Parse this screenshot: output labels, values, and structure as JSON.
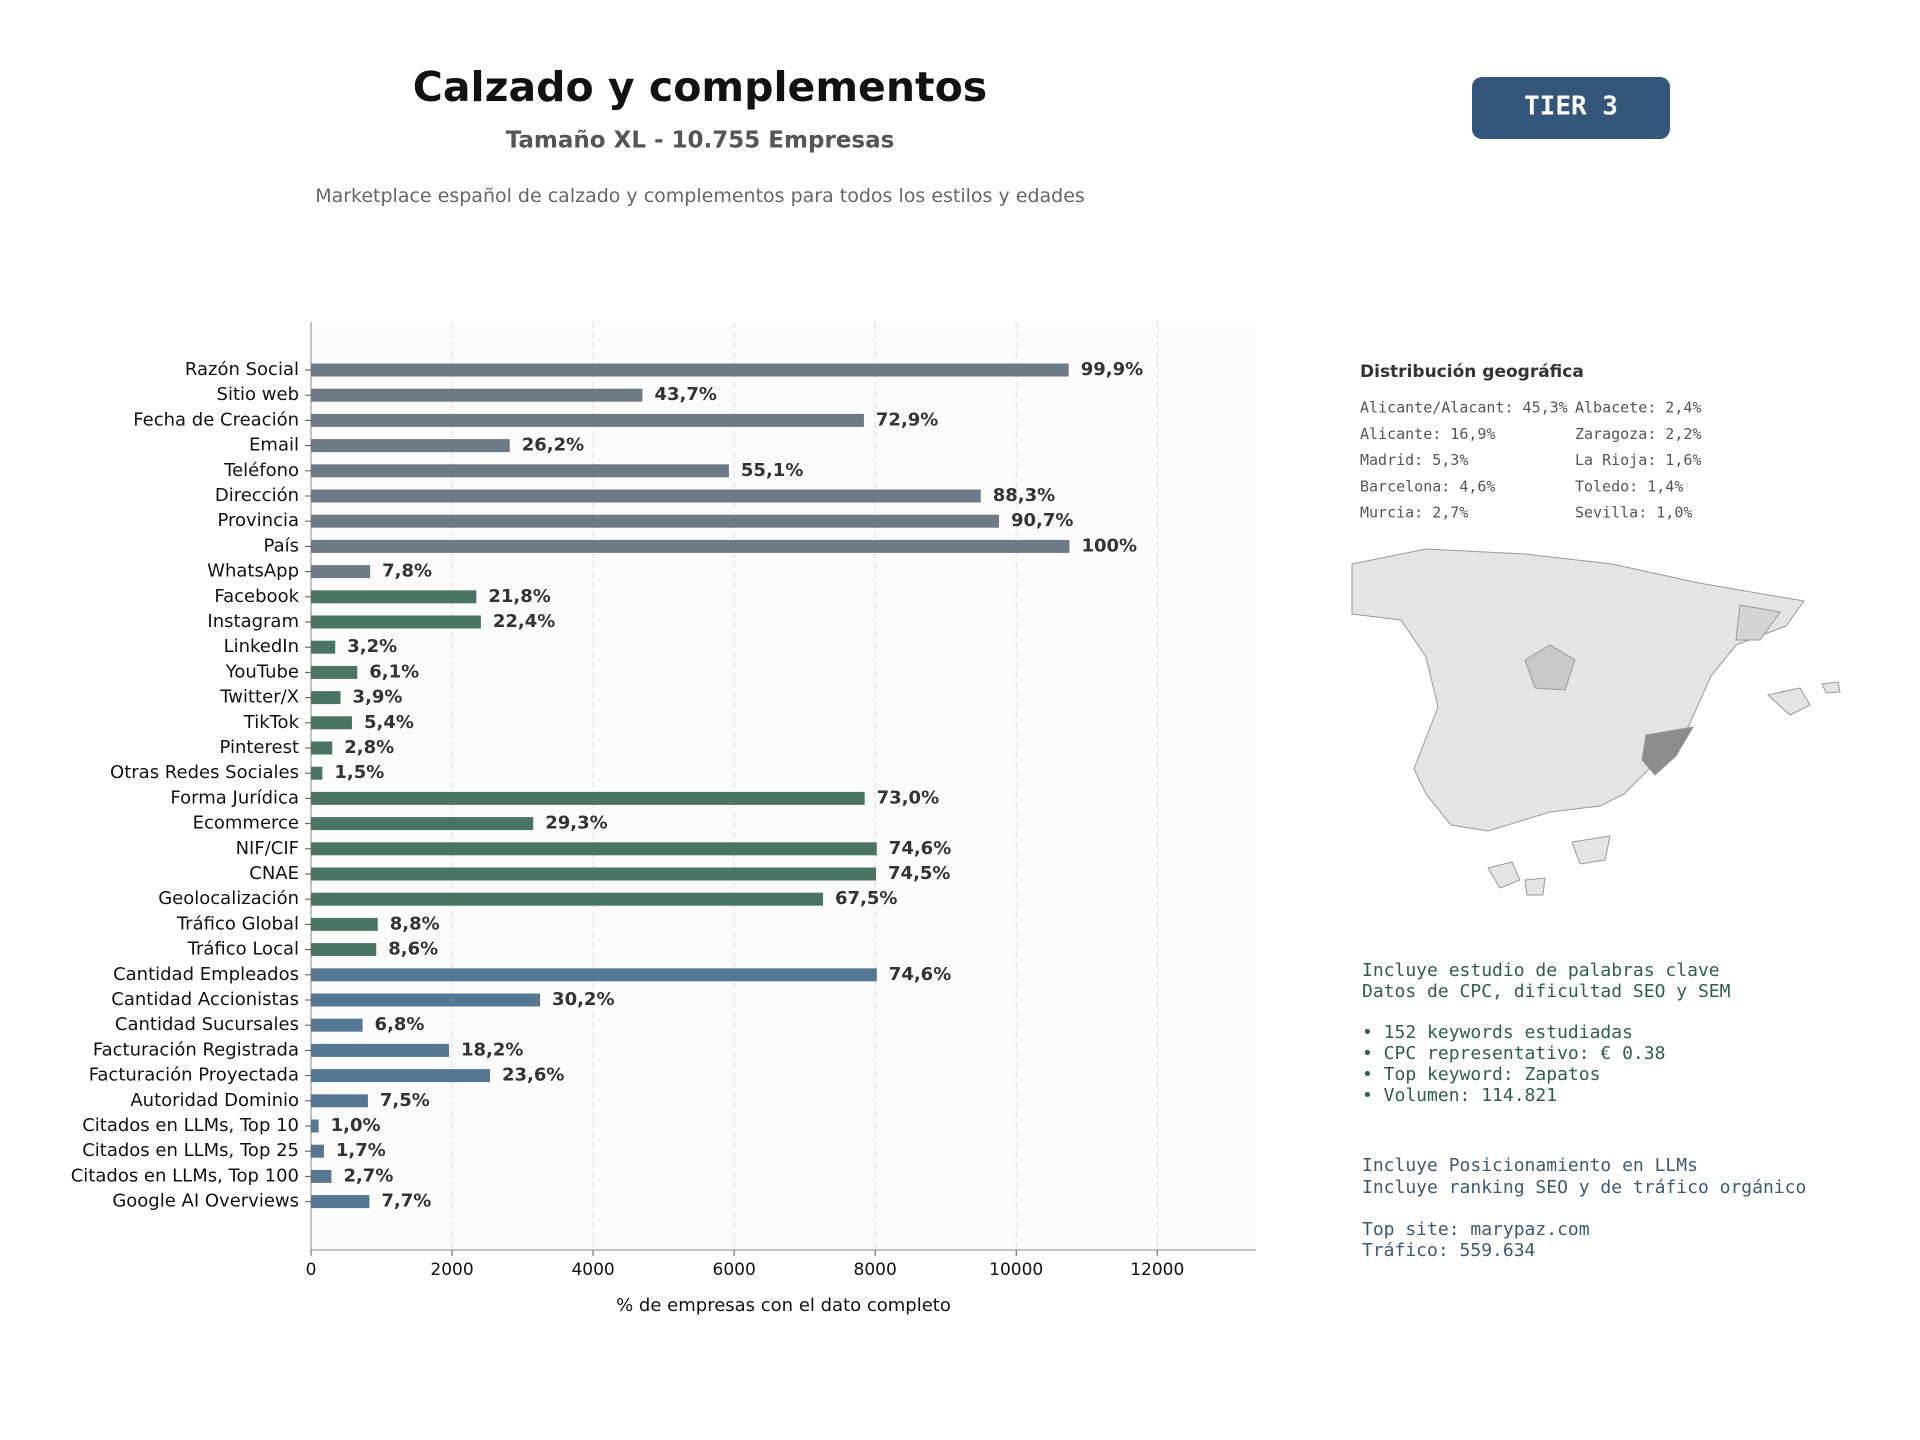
{
  "header": {
    "title": "Calzado y complementos",
    "subtitle": "Tamaño XL - 10.755 Empresas",
    "description": "Marketplace español de calzado y complementos para todos los estilos y edades",
    "badge": "TIER 3"
  },
  "chart_data": {
    "type": "barh",
    "categories": [
      "Razón Social",
      "Sitio web",
      "Fecha de Creación",
      "Email",
      "Teléfono",
      "Dirección",
      "Provincia",
      "País",
      "WhatsApp",
      "Facebook",
      "Instagram",
      "LinkedIn",
      "YouTube",
      "Twitter/X",
      "TikTok",
      "Pinterest",
      "Otras Redes Sociales",
      "Forma Jurídica",
      "Ecommerce",
      "NIF/CIF",
      "CNAE",
      "Geolocalización",
      "Tráfico Global",
      "Tráfico Local",
      "Cantidad Empleados",
      "Cantidad Accionistas",
      "Cantidad Sucursales",
      "Facturación Registrada",
      "Facturación Proyectada",
      "Autoridad Dominio",
      "Citados en LLMs, Top 10",
      "Citados en LLMs, Top 25",
      "Citados en LLMs, Top 100",
      "Google AI Overviews"
    ],
    "values": [
      10744,
      4700,
      7840,
      2818,
      5926,
      9497,
      9755,
      10755,
      839,
      2345,
      2409,
      344,
      656,
      419,
      581,
      301,
      161,
      7851,
      3151,
      8023,
      8012,
      7260,
      946,
      925,
      8023,
      3248,
      731,
      1957,
      2538,
      807,
      108,
      183,
      290,
      828
    ],
    "value_labels": [
      "99,9%",
      "43,7%",
      "72,9%",
      "26,2%",
      "55,1%",
      "88,3%",
      "90,7%",
      "100%",
      "7,8%",
      "21,8%",
      "22,4%",
      "3,2%",
      "6,1%",
      "3,9%",
      "5,4%",
      "2,8%",
      "1,5%",
      "73,0%",
      "29,3%",
      "74,6%",
      "74,5%",
      "67,5%",
      "8,8%",
      "8,6%",
      "74,6%",
      "30,2%",
      "6,8%",
      "18,2%",
      "23,6%",
      "7,5%",
      "1,0%",
      "1,7%",
      "2,7%",
      "7,7%"
    ],
    "colors": [
      "#6e7a85",
      "#6e7a85",
      "#6e7a85",
      "#6e7a85",
      "#6e7a85",
      "#6e7a85",
      "#6e7a85",
      "#6e7a85",
      "#6e7a85",
      "#4a7562",
      "#4a7562",
      "#4a7562",
      "#4a7562",
      "#4a7562",
      "#4a7562",
      "#4a7562",
      "#4a7562",
      "#4a7562",
      "#4a7562",
      "#4a7562",
      "#4a7562",
      "#4a7562",
      "#4a7562",
      "#4a7562",
      "#557792",
      "#557792",
      "#557792",
      "#557792",
      "#557792",
      "#557792",
      "#557792",
      "#557792",
      "#557792",
      "#557792"
    ],
    "xlim": [
      0,
      13400
    ],
    "xticks": [
      0,
      2000,
      4000,
      6000,
      8000,
      10000,
      12000
    ],
    "xlabel": "% de empresas con el dato completo",
    "grid": true
  },
  "geo": {
    "title": "Distribución geográfica",
    "items": [
      "Alicante/Alacant: 45,3%",
      "Alicante: 16,9%",
      "Madrid: 5,3%",
      "Barcelona: 4,6%",
      "Murcia: 2,7%",
      "Albacete: 2,4%",
      "Zaragoza: 2,2%",
      "La Rioja: 1,6%",
      "Toledo: 1,4%",
      "Sevilla: 1,0%"
    ]
  },
  "keywords": {
    "lines": [
      "Incluye estudio de palabras clave",
      "Datos de CPC, dificultad SEO y SEM",
      "• 152 keywords estudiadas",
      "• CPC representativo: € 0.38",
      "• Top keyword: Zapatos",
      "• Volumen: 114.821"
    ]
  },
  "llm": {
    "lines": [
      "Incluye Posicionamiento en LLMs",
      "Incluye ranking SEO y de tráfico orgánico",
      "Top site: marypaz.com",
      "Tráfico: 559.634"
    ]
  }
}
